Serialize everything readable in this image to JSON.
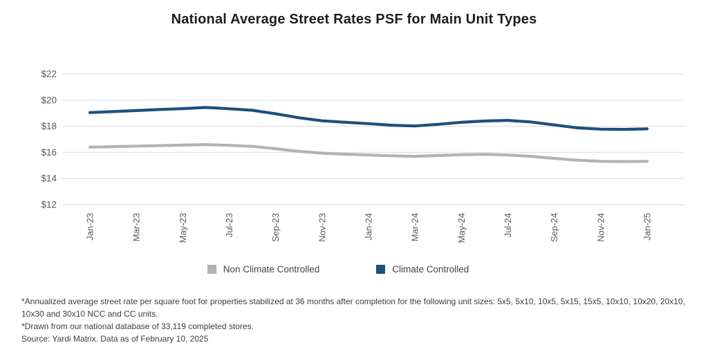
{
  "title": "National Average Street Rates PSF for Main Unit Types",
  "chart_data": {
    "type": "line",
    "x": [
      "Jan-23",
      "Feb-23",
      "Mar-23",
      "Apr-23",
      "May-23",
      "Jun-23",
      "Jul-23",
      "Aug-23",
      "Sep-23",
      "Oct-23",
      "Nov-23",
      "Dec-23",
      "Jan-24",
      "Feb-24",
      "Mar-24",
      "Apr-24",
      "May-24",
      "Jun-24",
      "Jul-24",
      "Aug-24",
      "Sep-24",
      "Oct-24",
      "Nov-24",
      "Dec-24",
      "Jan-25"
    ],
    "x_tick_labels": [
      "Jan-23",
      "Mar-23",
      "May-23",
      "Jul-23",
      "Sep-23",
      "Nov-23",
      "Jan-24",
      "Mar-24",
      "May-24",
      "Jul-24",
      "Sep-24",
      "Nov-24",
      "Jan-25"
    ],
    "series": [
      {
        "name": "Non Climate Controlled",
        "color": "#b3b3b3",
        "values": [
          16.4,
          16.44,
          16.48,
          16.52,
          16.56,
          16.6,
          16.54,
          16.46,
          16.28,
          16.08,
          15.94,
          15.86,
          15.8,
          15.74,
          15.7,
          15.76,
          15.82,
          15.85,
          15.8,
          15.7,
          15.54,
          15.4,
          15.32,
          15.3,
          15.32
        ]
      },
      {
        "name": "Climate Controlled",
        "color": "#1d4f80",
        "values": [
          19.05,
          19.12,
          19.2,
          19.28,
          19.35,
          19.44,
          19.34,
          19.22,
          18.95,
          18.65,
          18.42,
          18.3,
          18.2,
          18.08,
          18.02,
          18.15,
          18.3,
          18.4,
          18.45,
          18.33,
          18.1,
          17.88,
          17.78,
          17.76,
          17.8
        ]
      }
    ],
    "title": "National Average Street Rates PSF for Main Unit Types",
    "xlabel": "",
    "ylabel": "",
    "ylim": [
      12,
      22
    ],
    "ytick_step": 2,
    "ytick_prefix": "$",
    "grid": "horizontal",
    "legend_position": "bottom"
  },
  "legend": {
    "items": [
      {
        "label": "Non Climate Controlled",
        "color": "#b3b3b3"
      },
      {
        "label": "Climate Controlled",
        "color": "#1d4f80"
      }
    ]
  },
  "footnotes": [
    "*Annualized average street rate per square foot for properties stabilized at 36 months after completion for the following unit sizes: 5x5, 5x10, 10x5, 5x15, 15x5, 10x10, 10x20, 20x10, 10x30 and 30x10 NCC and CC units.",
    "*Drawn from our national database of 33,119 completed stores.",
    "Source: Yardi Matrix. Data as of February 10, 2025"
  ],
  "colors": {
    "grid_line": "#e2e2e2",
    "axis_text": "#595959",
    "title_text": "#1d1d1d",
    "footnote_text": "#3d3d3d"
  }
}
